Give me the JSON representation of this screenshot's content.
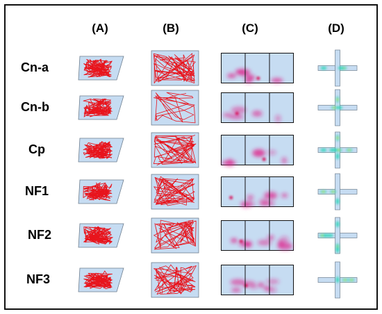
{
  "columns": [
    {
      "key": "A",
      "label": "(A)"
    },
    {
      "key": "B",
      "label": "(B)"
    },
    {
      "key": "C",
      "label": "(C)"
    },
    {
      "key": "D",
      "label": "(D)"
    }
  ],
  "rows": [
    {
      "label": "Cn-a"
    },
    {
      "label": "Cn-b"
    },
    {
      "label": "Cp"
    },
    {
      "label": "NF1"
    },
    {
      "label": "NF2"
    },
    {
      "label": "NF3"
    }
  ],
  "colors": {
    "arena_fill": "#c6dcf2",
    "track": "#e8141c",
    "heat": "#e0208a",
    "heat_hot": "#d9004d",
    "maze_hot": "#2fd6b8",
    "maze_peak": "#c8e62e",
    "border": "#111111"
  }
}
